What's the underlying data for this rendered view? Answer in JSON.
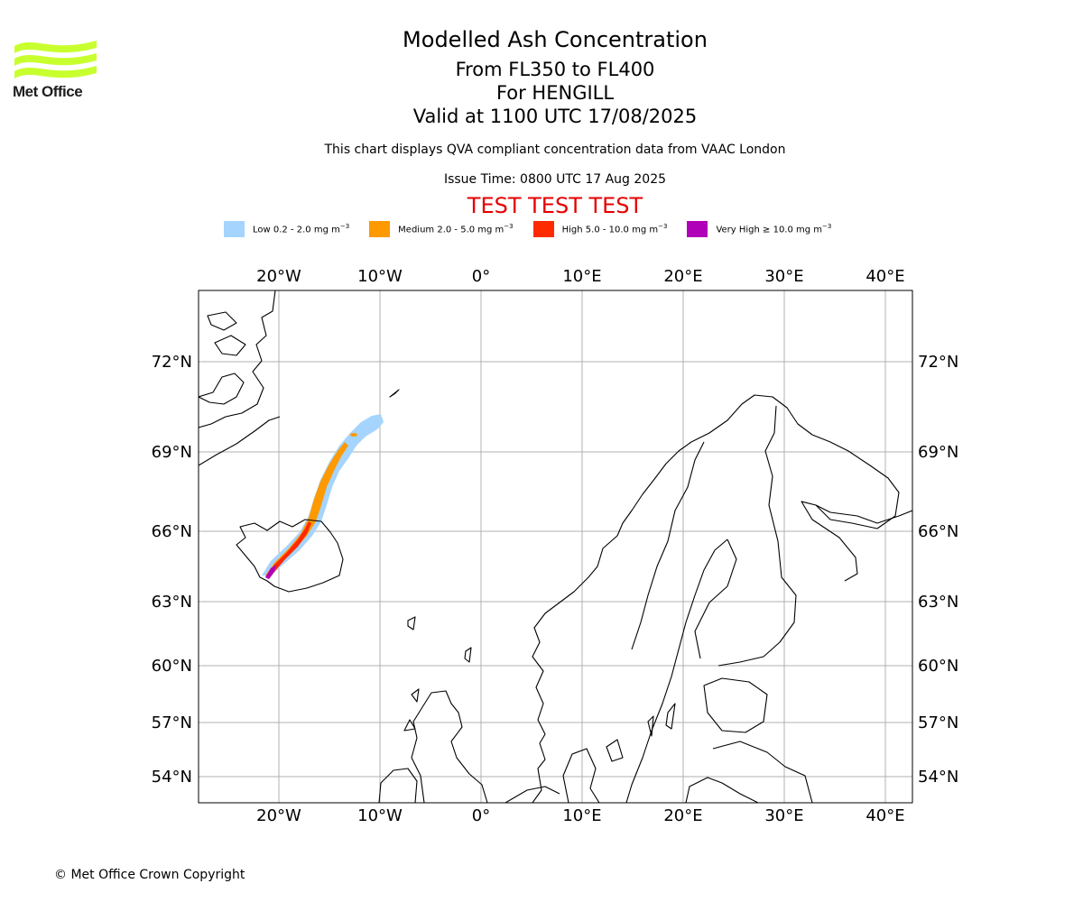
{
  "logo": {
    "text": "Met Office",
    "stripe_color": "#c8ff2e"
  },
  "header": {
    "title": "Modelled Ash Concentration",
    "levels": "From FL350 to FL400",
    "volcano": "For HENGILL",
    "valid": "Valid at 1100 UTC 17/08/2025",
    "description": "This chart displays QVA compliant concentration data from VAAC London",
    "issue_time": "Issue Time: 0800 UTC 17 Aug 2025",
    "test_banner": "TEST TEST TEST",
    "test_color": "#e60000"
  },
  "legend": [
    {
      "label": "Low 0.2 - 2.0 mg m",
      "exponent": "−3",
      "color": "#a5d4ff"
    },
    {
      "label": "Medium 2.0 - 5.0 mg m",
      "exponent": "−3",
      "color": "#ff9900"
    },
    {
      "label": "High 5.0 - 10.0 mg m",
      "exponent": "−3",
      "color": "#ff2a00"
    },
    {
      "label": "Very High ≥ 10.0 mg m",
      "exponent": "−3",
      "color": "#b000b8"
    }
  ],
  "map": {
    "lon_ticks": [
      "20°W",
      "10°W",
      "0°",
      "10°E",
      "20°E",
      "30°E",
      "40°E"
    ],
    "lat_ticks": [
      "72°N",
      "69°N",
      "66°N",
      "63°N",
      "60°N",
      "57°N",
      "54°N"
    ],
    "grid": true
  },
  "footer": {
    "copyright": "© Met Office Crown Copyright"
  }
}
